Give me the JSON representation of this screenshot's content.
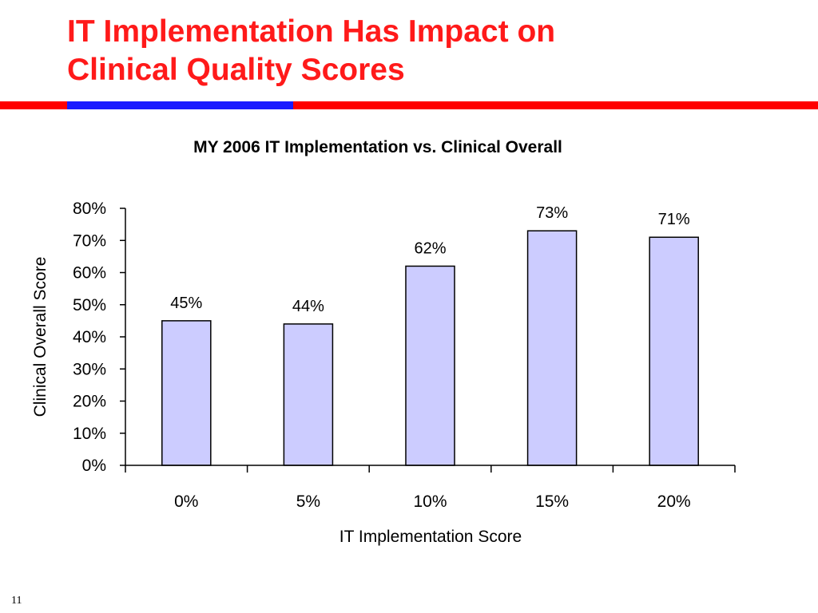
{
  "slide": {
    "title_line1": "IT Implementation Has Impact on",
    "title_line2": "Clinical Quality Scores",
    "page_number": "11"
  },
  "colors": {
    "title": "#ff1a1a",
    "rule_red": "#ff0000",
    "rule_blue": "#1a1aff",
    "bar_fill": "#ccccff",
    "bar_stroke": "#000000"
  },
  "chart_data": {
    "type": "bar",
    "title": "MY 2006 IT Implementation vs. Clinical Overall",
    "xlabel": "IT Implementation Score",
    "ylabel": "Clinical Overall Score",
    "categories": [
      "0%",
      "5%",
      "10%",
      "15%",
      "20%"
    ],
    "values": [
      0.45,
      0.44,
      0.62,
      0.73,
      0.71
    ],
    "data_labels": [
      "45%",
      "44%",
      "62%",
      "73%",
      "71%"
    ],
    "ylim": [
      0,
      0.8
    ],
    "yticks": [
      0,
      0.1,
      0.2,
      0.3,
      0.4,
      0.5,
      0.6,
      0.7,
      0.8
    ],
    "ytick_labels": [
      "0%",
      "10%",
      "20%",
      "30%",
      "40%",
      "50%",
      "60%",
      "70%",
      "80%"
    ],
    "grid": false,
    "legend": "none"
  }
}
